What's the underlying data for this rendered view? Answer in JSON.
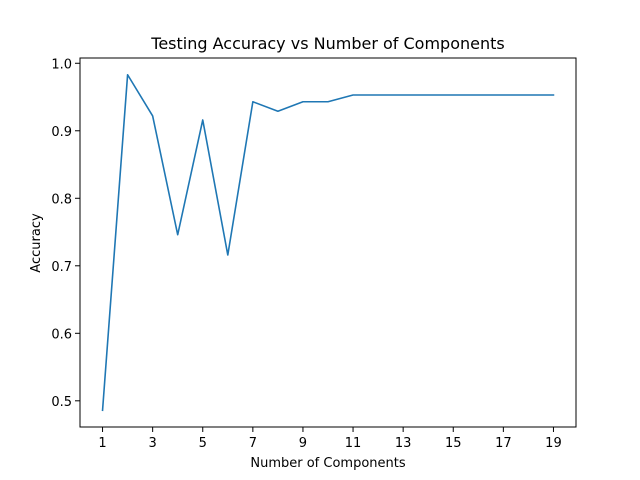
{
  "chart_data": {
    "type": "line",
    "title": "Testing Accuracy vs Number of Components",
    "xlabel": "Number of Components",
    "ylabel": "Accuracy",
    "x": [
      1,
      2,
      3,
      4,
      5,
      6,
      7,
      8,
      9,
      10,
      11,
      12,
      13,
      14,
      15,
      16,
      17,
      18,
      19
    ],
    "series": [
      {
        "values": [
          0.486,
          0.983,
          0.922,
          0.746,
          0.916,
          0.716,
          0.943,
          0.929,
          0.943,
          0.943,
          0.953,
          0.953,
          0.953,
          0.953,
          0.953,
          0.953,
          0.953,
          0.953,
          0.953
        ],
        "color": "#1f77b4"
      }
    ],
    "xlim": [
      0.1,
      19.9
    ],
    "ylim": [
      0.4612,
      1.0078
    ],
    "xticks": [
      1,
      3,
      5,
      7,
      9,
      11,
      13,
      15,
      17,
      19
    ],
    "xtick_labels": [
      "1",
      "3",
      "5",
      "7",
      "9",
      "11",
      "13",
      "15",
      "17",
      "19"
    ],
    "yticks": [
      0.5,
      0.6,
      0.7,
      0.8,
      0.9,
      1.0
    ],
    "ytick_labels": [
      "0.5",
      "0.6",
      "0.7",
      "0.8",
      "0.9",
      "1.0"
    ],
    "grid": false,
    "legend": "none"
  }
}
